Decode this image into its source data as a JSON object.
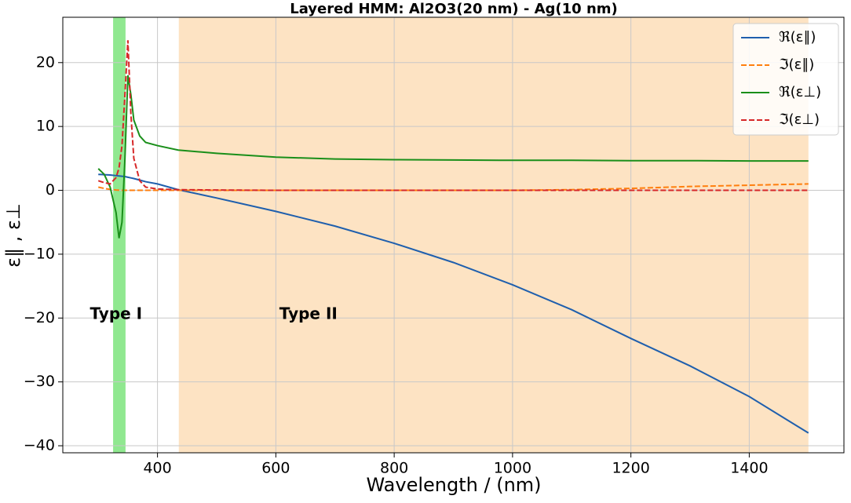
{
  "chart_data": {
    "type": "line",
    "title": "Layered HMM: Al2O3(20 nm) - Ag(10 nm)",
    "x_label": "Wavelength / (nm)",
    "y_label": "ε∥ , ε⊥",
    "x": [
      300,
      310,
      320,
      330,
      335,
      340,
      345,
      350,
      355,
      360,
      370,
      380,
      400,
      435,
      500,
      600,
      700,
      800,
      900,
      1000,
      1100,
      1200,
      1300,
      1400,
      1500
    ],
    "series": [
      {
        "name": "ℜ(ε∥)",
        "color": "#1f5fad",
        "dash": false,
        "values": [
          2.5,
          2.45,
          2.4,
          2.3,
          2.25,
          2.2,
          2.15,
          2.05,
          1.95,
          1.85,
          1.6,
          1.35,
          1.0,
          0.1,
          -1.2,
          -3.3,
          -5.6,
          -8.3,
          -11.3,
          -14.8,
          -18.7,
          -23.2,
          -27.5,
          -32.3,
          -38
        ]
      },
      {
        "name": "ℑ(ε∥)",
        "color": "#ff7f0e",
        "dash": true,
        "values": [
          0.5,
          0.3,
          0.15,
          0.05,
          0.02,
          0,
          0,
          0,
          0,
          0,
          0,
          0,
          0,
          0,
          0,
          0,
          0,
          0,
          0,
          0,
          0.1,
          0.3,
          0.6,
          0.8,
          1.0
        ]
      },
      {
        "name": "ℜ(ε⊥)",
        "color": "#1a8f1a",
        "dash": false,
        "values": [
          3.4,
          2.5,
          0.5,
          -3.5,
          -7.5,
          -5,
          5,
          18,
          15,
          11,
          8.5,
          7.5,
          7,
          6.3,
          5.8,
          5.2,
          4.9,
          4.8,
          4.75,
          4.7,
          4.7,
          4.65,
          4.65,
          4.6,
          4.6
        ]
      },
      {
        "name": "ℑ(ε⊥)",
        "color": "#d62728",
        "dash": true,
        "values": [
          1.5,
          1.2,
          1.0,
          2,
          3.5,
          7,
          15,
          23.5,
          12,
          5,
          1.5,
          0.5,
          0.2,
          0.1,
          0.05,
          0,
          0,
          0,
          0,
          0,
          0,
          0,
          0,
          0,
          0
        ]
      }
    ],
    "regions": [
      {
        "x0": 325,
        "x1": 346,
        "color": "#90e890"
      },
      {
        "x0": 436,
        "x1": 1500,
        "color": "#fde3c3"
      }
    ],
    "annotations": [
      {
        "text": "Type I",
        "x": 330,
        "y": -19.5
      },
      {
        "text": "Type II",
        "x": 655,
        "y": -19.5
      }
    ],
    "xlim": [
      240,
      1560
    ],
    "ylim": [
      -41.1,
      27.1
    ],
    "xticks": [
      400,
      600,
      800,
      1000,
      1200,
      1400
    ],
    "yticks": [
      {
        "value": -40,
        "label": "−40"
      },
      {
        "value": -30,
        "label": "−30"
      },
      {
        "value": -20,
        "label": "−20"
      },
      {
        "value": -10,
        "label": "−10"
      },
      0,
      10,
      20
    ],
    "grid": true,
    "legend": "upper right"
  }
}
